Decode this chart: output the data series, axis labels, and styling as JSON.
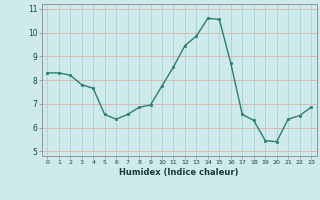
{
  "x": [
    0,
    1,
    2,
    3,
    4,
    5,
    6,
    7,
    8,
    9,
    10,
    11,
    12,
    13,
    14,
    15,
    16,
    17,
    18,
    19,
    20,
    21,
    22,
    23
  ],
  "y": [
    8.3,
    8.3,
    8.2,
    7.8,
    7.65,
    6.55,
    6.35,
    6.55,
    6.85,
    6.95,
    7.75,
    8.55,
    9.45,
    9.85,
    10.6,
    10.55,
    8.7,
    6.55,
    6.3,
    5.45,
    5.4,
    6.35,
    6.5,
    6.85
  ],
  "xlabel": "Humidex (Indice chaleur)",
  "ylim": [
    4.8,
    11.2
  ],
  "xlim": [
    -0.5,
    23.5
  ],
  "bg_color": "#ceeaea",
  "line_color": "#2e7d72",
  "v_grid_color": "#a8d4d4",
  "h_grid_color": "#ddb0b0",
  "yticks": [
    5,
    6,
    7,
    8,
    9,
    10,
    11
  ],
  "xticks": [
    0,
    1,
    2,
    3,
    4,
    5,
    6,
    7,
    8,
    9,
    10,
    11,
    12,
    13,
    14,
    15,
    16,
    17,
    18,
    19,
    20,
    21,
    22,
    23
  ],
  "xtick_labels": [
    "0",
    "1",
    "2",
    "3",
    "4",
    "5",
    "6",
    "7",
    "8",
    "9",
    "10",
    "11",
    "12",
    "13",
    "14",
    "15",
    "16",
    "17",
    "18",
    "19",
    "20",
    "21",
    "22",
    "23"
  ]
}
